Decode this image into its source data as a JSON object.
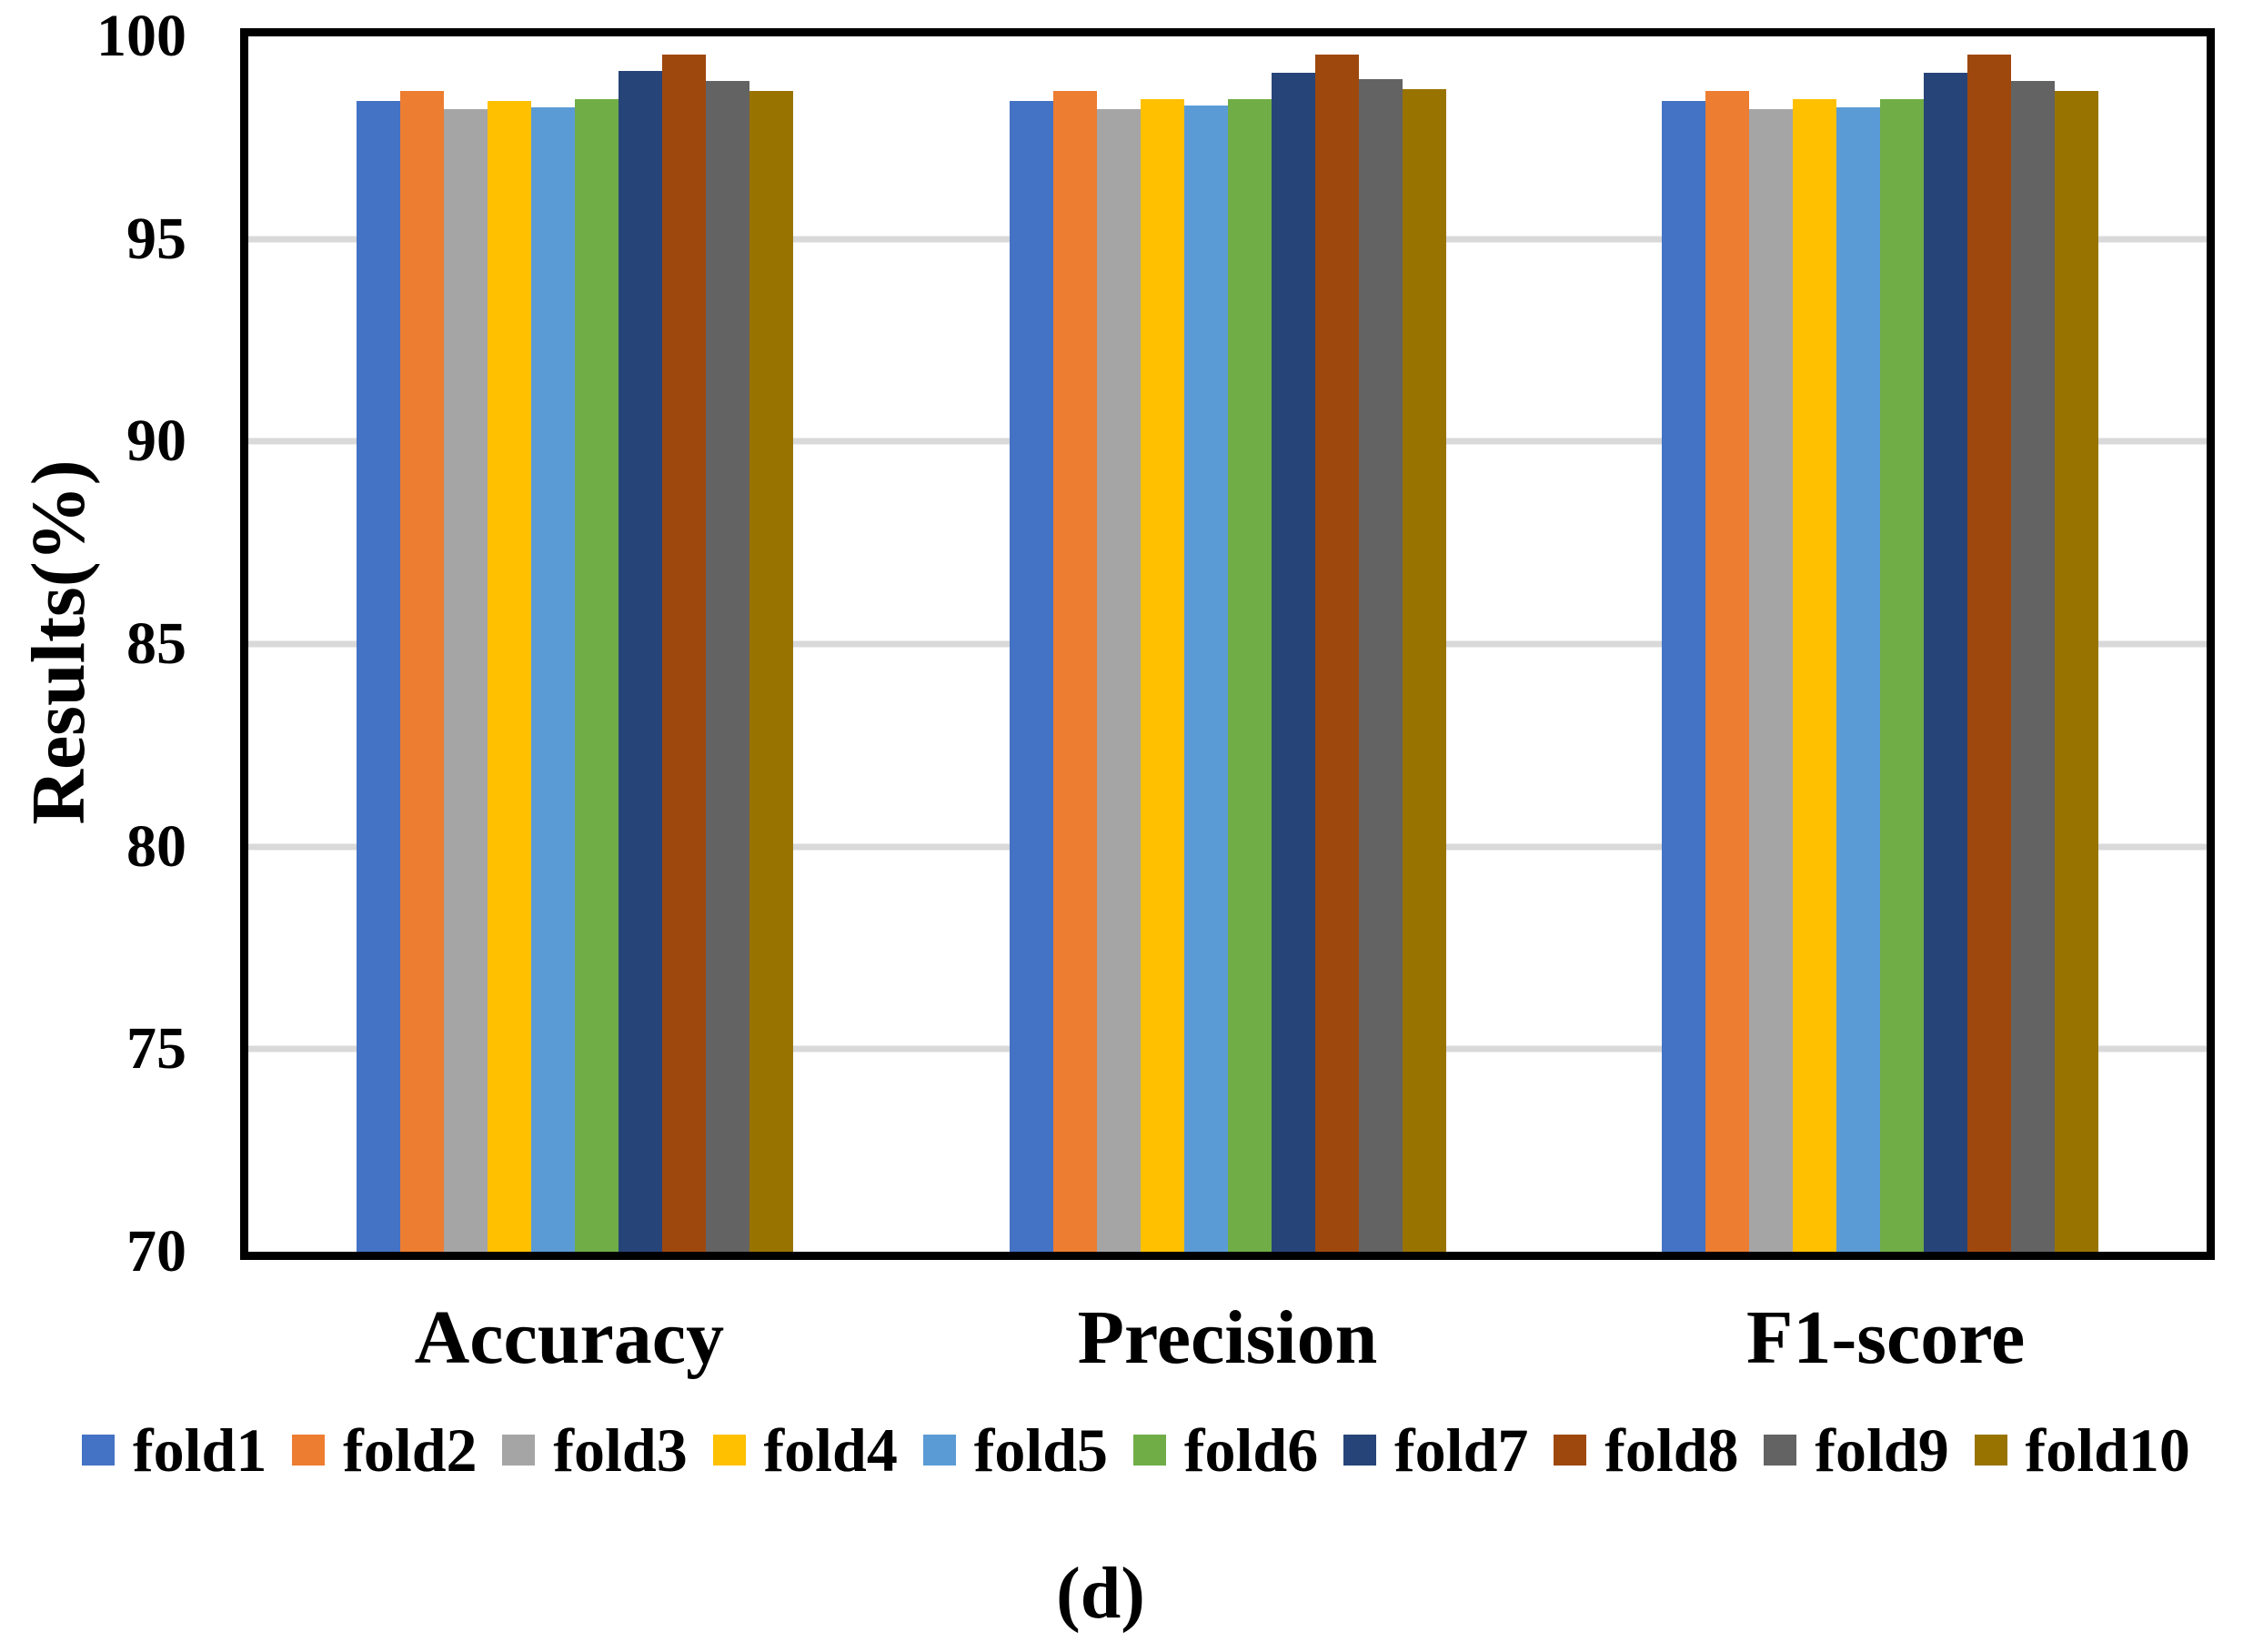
{
  "chart_data": {
    "type": "bar",
    "title": "",
    "xlabel": "",
    "ylabel": "Results(%)",
    "ylim": [
      70,
      100
    ],
    "yticks": [
      70,
      75,
      80,
      85,
      90,
      95,
      100
    ],
    "grid": "horizontal-gridlines-on",
    "legend_position": "bottom",
    "caption": "(d)",
    "categories": [
      "Accuracy",
      "Precision",
      "F1-score"
    ],
    "series": [
      {
        "name": "fold1",
        "color": "#4472C4",
        "values": [
          98.4,
          98.4,
          98.4
        ]
      },
      {
        "name": "fold2",
        "color": "#ED7D31",
        "values": [
          98.65,
          98.65,
          98.65
        ]
      },
      {
        "name": "fold3",
        "color": "#A5A5A5",
        "values": [
          98.2,
          98.2,
          98.2
        ]
      },
      {
        "name": "fold4",
        "color": "#FFC000",
        "values": [
          98.4,
          98.45,
          98.45
        ]
      },
      {
        "name": "fold5",
        "color": "#5B9BD5",
        "values": [
          98.25,
          98.3,
          98.25
        ]
      },
      {
        "name": "fold6",
        "color": "#70AD47",
        "values": [
          98.45,
          98.45,
          98.45
        ]
      },
      {
        "name": "fold7",
        "color": "#264478",
        "values": [
          99.15,
          99.1,
          99.1
        ]
      },
      {
        "name": "fold8",
        "color": "#9E480E",
        "values": [
          99.55,
          99.55,
          99.55
        ]
      },
      {
        "name": "fold9",
        "color": "#636363",
        "values": [
          98.9,
          98.95,
          98.9
        ]
      },
      {
        "name": "fold10",
        "color": "#997300",
        "values": [
          98.65,
          98.7,
          98.65
        ]
      }
    ],
    "colors": {
      "gridline": "#D9D9D9",
      "axis_frame": "#000000",
      "background": "#FFFFFF",
      "text": "#000000"
    }
  }
}
